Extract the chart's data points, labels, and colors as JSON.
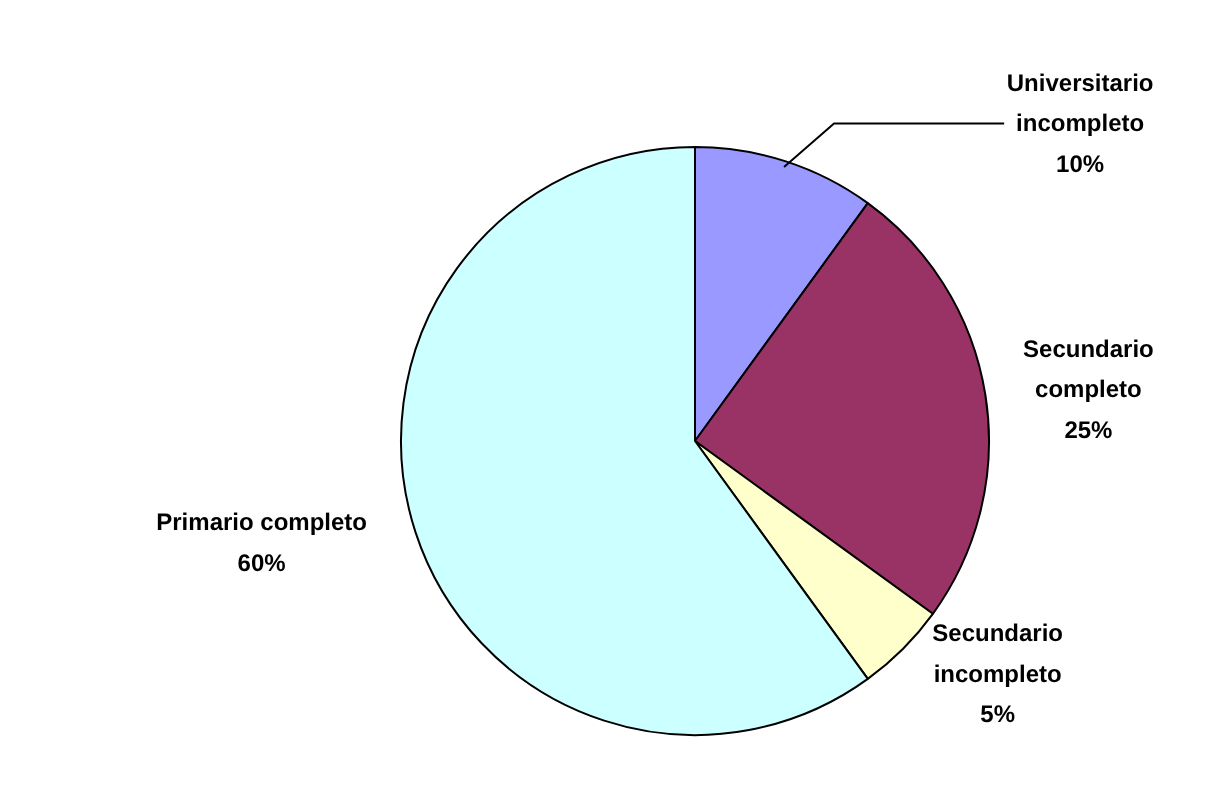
{
  "chart_data": {
    "type": "pie",
    "categories": [
      "Universitario incompleto",
      "Secundario completo",
      "Secundario incompleto",
      "Primario completo"
    ],
    "values": [
      10,
      25,
      5,
      60
    ],
    "colors": [
      "#9999ff",
      "#993366",
      "#ffffcc",
      "#ccffff"
    ],
    "value_labels": [
      "10%",
      "25%",
      "5%",
      "60%"
    ]
  }
}
